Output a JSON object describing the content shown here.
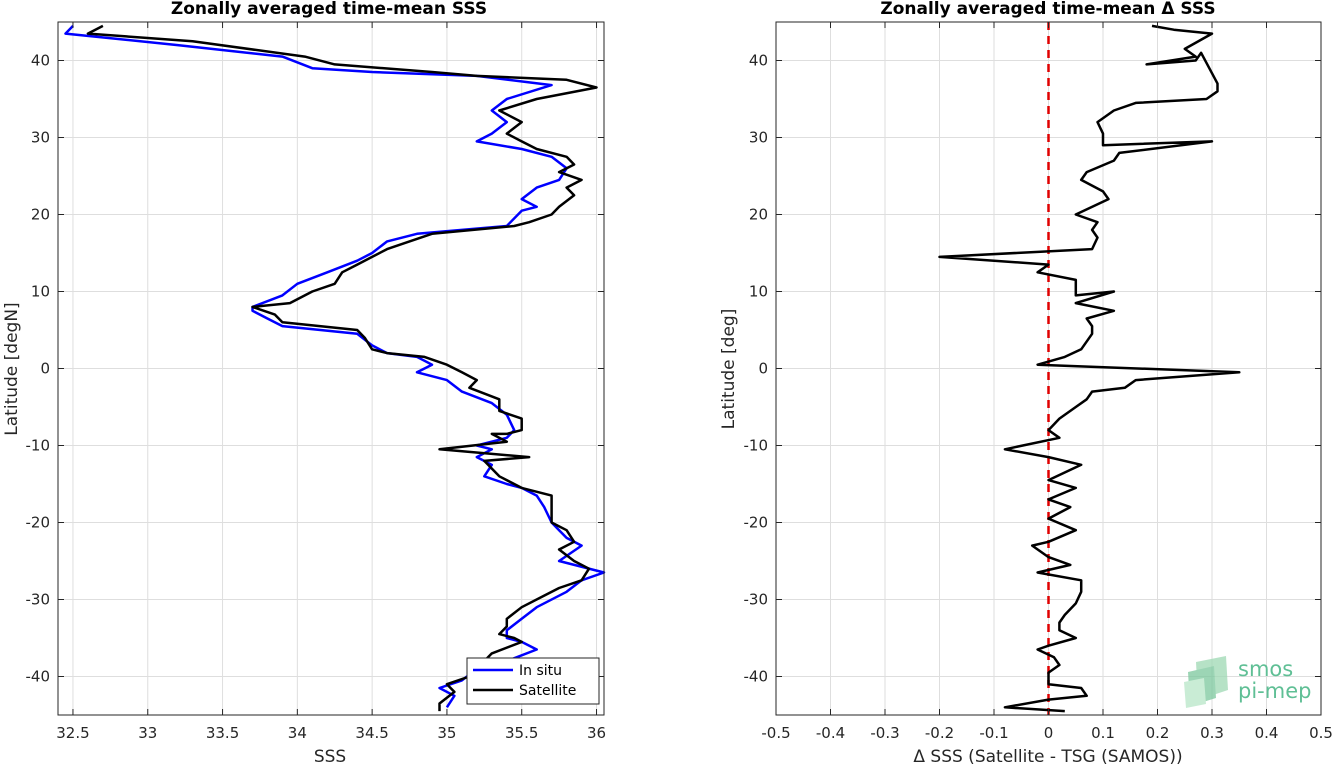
{
  "chart_data": [
    {
      "type": "line",
      "title": "Zonally averaged time-mean SSS",
      "xlabel": "SSS",
      "ylabel": "Latitude [degN]",
      "xlim": [
        32.4,
        36.05
      ],
      "ylim": [
        -45,
        45
      ],
      "xticks": [
        32.5,
        33,
        33.5,
        34,
        34.5,
        35,
        35.5,
        36
      ],
      "xtick_labels": [
        "32.5",
        "33",
        "33.5",
        "34",
        "34.5",
        "35",
        "35.5",
        "36"
      ],
      "yticks": [
        -40,
        -30,
        -20,
        -10,
        0,
        10,
        20,
        30,
        40
      ],
      "ytick_labels": [
        "-40",
        "-30",
        "-20",
        "-10",
        "0",
        "10",
        "20",
        "30",
        "40"
      ],
      "grid": true,
      "legend_position": "bottom-right",
      "series": [
        {
          "name": "In situ",
          "color": "#0000ff",
          "points": [
            [
              32.5,
              44.5
            ],
            [
              32.45,
              43.5
            ],
            [
              33.2,
              42
            ],
            [
              33.9,
              40.5
            ],
            [
              34.1,
              39
            ],
            [
              34.5,
              38.5
            ],
            [
              35.2,
              38
            ],
            [
              35.7,
              36.8
            ],
            [
              35.4,
              35
            ],
            [
              35.3,
              33.5
            ],
            [
              35.4,
              32
            ],
            [
              35.3,
              30.5
            ],
            [
              35.2,
              29.5
            ],
            [
              35.5,
              28.5
            ],
            [
              35.7,
              27.5
            ],
            [
              35.8,
              26
            ],
            [
              35.75,
              24.5
            ],
            [
              35.6,
              23.5
            ],
            [
              35.5,
              22
            ],
            [
              35.6,
              21
            ],
            [
              35.5,
              20.5
            ],
            [
              35.4,
              18.5
            ],
            [
              34.8,
              17.5
            ],
            [
              34.6,
              16.5
            ],
            [
              34.5,
              15
            ],
            [
              34.4,
              14
            ],
            [
              34.2,
              12.5
            ],
            [
              34.0,
              11
            ],
            [
              33.9,
              9.5
            ],
            [
              33.7,
              8
            ],
            [
              33.7,
              7.5
            ],
            [
              33.8,
              6.5
            ],
            [
              33.9,
              5.5
            ],
            [
              34.4,
              4.5
            ],
            [
              34.5,
              3
            ],
            [
              34.6,
              2
            ],
            [
              34.8,
              1.5
            ],
            [
              34.9,
              0.5
            ],
            [
              34.8,
              -0.5
            ],
            [
              35.0,
              -1.5
            ],
            [
              35.1,
              -3
            ],
            [
              35.3,
              -4.5
            ],
            [
              35.4,
              -6
            ],
            [
              35.45,
              -8
            ],
            [
              35.4,
              -9
            ],
            [
              35.2,
              -10
            ],
            [
              35.3,
              -10.5
            ],
            [
              35.2,
              -11.5
            ],
            [
              35.3,
              -12.5
            ],
            [
              35.25,
              -14
            ],
            [
              35.4,
              -15
            ],
            [
              35.5,
              -15.5
            ],
            [
              35.6,
              -16.5
            ],
            [
              35.65,
              -18
            ],
            [
              35.7,
              -20
            ],
            [
              35.75,
              -21
            ],
            [
              35.8,
              -22
            ],
            [
              35.9,
              -23
            ],
            [
              35.75,
              -25
            ],
            [
              36.05,
              -26.5
            ],
            [
              35.9,
              -27.5
            ],
            [
              35.8,
              -29
            ],
            [
              35.6,
              -31
            ],
            [
              35.5,
              -32.5
            ],
            [
              35.4,
              -34
            ],
            [
              35.4,
              -35
            ],
            [
              35.5,
              -35.5
            ],
            [
              35.6,
              -36.5
            ],
            [
              35.4,
              -38
            ],
            [
              35.2,
              -39
            ],
            [
              35.1,
              -40.5
            ],
            [
              34.95,
              -41.5
            ],
            [
              35.05,
              -42.5
            ],
            [
              35.0,
              -44
            ]
          ]
        },
        {
          "name": "Satellite",
          "color": "#000000",
          "points": [
            [
              32.7,
              44.5
            ],
            [
              32.6,
              43.5
            ],
            [
              33.3,
              42.5
            ],
            [
              34.05,
              40.5
            ],
            [
              34.25,
              39.5
            ],
            [
              34.9,
              38.5
            ],
            [
              35.2,
              38
            ],
            [
              35.8,
              37.5
            ],
            [
              36.0,
              36.5
            ],
            [
              35.6,
              35
            ],
            [
              35.35,
              33.5
            ],
            [
              35.5,
              32
            ],
            [
              35.4,
              30.5
            ],
            [
              35.5,
              29.5
            ],
            [
              35.6,
              28.5
            ],
            [
              35.8,
              27.5
            ],
            [
              35.85,
              26.5
            ],
            [
              35.75,
              25.5
            ],
            [
              35.9,
              24.5
            ],
            [
              35.8,
              23.5
            ],
            [
              35.85,
              22.5
            ],
            [
              35.75,
              21
            ],
            [
              35.7,
              20
            ],
            [
              35.55,
              19
            ],
            [
              35.45,
              18.5
            ],
            [
              34.9,
              17.5
            ],
            [
              34.75,
              16.5
            ],
            [
              34.6,
              15.5
            ],
            [
              34.5,
              14.5
            ],
            [
              34.4,
              13.5
            ],
            [
              34.3,
              12.5
            ],
            [
              34.25,
              11
            ],
            [
              34.1,
              10
            ],
            [
              33.95,
              8.5
            ],
            [
              33.7,
              8
            ],
            [
              33.85,
              7
            ],
            [
              33.9,
              6
            ],
            [
              34.4,
              5
            ],
            [
              34.45,
              4
            ],
            [
              34.5,
              2.5
            ],
            [
              34.6,
              2
            ],
            [
              34.85,
              1.5
            ],
            [
              35.0,
              0.5
            ],
            [
              35.1,
              -0.5
            ],
            [
              35.2,
              -1.5
            ],
            [
              35.15,
              -2.5
            ],
            [
              35.35,
              -4
            ],
            [
              35.35,
              -5.5
            ],
            [
              35.5,
              -6.5
            ],
            [
              35.5,
              -8
            ],
            [
              35.4,
              -8.5
            ],
            [
              35.3,
              -8.5
            ],
            [
              35.4,
              -9.5
            ],
            [
              34.95,
              -10.5
            ],
            [
              35.55,
              -11.5
            ],
            [
              35.25,
              -12
            ],
            [
              35.35,
              -14
            ],
            [
              35.5,
              -15.5
            ],
            [
              35.7,
              -16.5
            ],
            [
              35.7,
              -18
            ],
            [
              35.7,
              -20
            ],
            [
              35.8,
              -21
            ],
            [
              35.85,
              -22.5
            ],
            [
              35.75,
              -23.5
            ],
            [
              35.85,
              -25
            ],
            [
              35.95,
              -26
            ],
            [
              35.9,
              -27.5
            ],
            [
              35.75,
              -28.5
            ],
            [
              35.65,
              -29.5
            ],
            [
              35.5,
              -31
            ],
            [
              35.4,
              -32.5
            ],
            [
              35.4,
              -33.5
            ],
            [
              35.35,
              -34.5
            ],
            [
              35.45,
              -35
            ],
            [
              35.5,
              -35.5
            ],
            [
              35.3,
              -37
            ],
            [
              35.2,
              -39
            ],
            [
              35.15,
              -40
            ],
            [
              35.0,
              -41
            ],
            [
              35.05,
              -42
            ],
            [
              34.95,
              -43.5
            ],
            [
              34.95,
              -44.5
            ]
          ]
        }
      ]
    },
    {
      "type": "line",
      "title": "Zonally averaged time-mean Δ SSS",
      "xlabel": "Δ SSS (Satellite - TSG (SAMOS))",
      "ylabel": "Latitude [deg]",
      "xlim": [
        -0.5,
        0.5
      ],
      "ylim": [
        -45,
        45
      ],
      "xticks": [
        -0.5,
        -0.4,
        -0.3,
        -0.2,
        -0.1,
        0,
        0.1,
        0.2,
        0.3,
        0.4,
        0.5
      ],
      "xtick_labels": [
        "-0.5",
        "-0.4",
        "-0.3",
        "-0.2",
        "-0.1",
        "0",
        "0.1",
        "0.2",
        "0.3",
        "0.4",
        "0.5"
      ],
      "yticks": [
        -40,
        -30,
        -20,
        -10,
        0,
        10,
        20,
        30,
        40
      ],
      "ytick_labels": [
        "-40",
        "-30",
        "-20",
        "-10",
        "0",
        "10",
        "20",
        "30",
        "40"
      ],
      "grid": true,
      "reference_line": {
        "x": 0,
        "color": "#e00000",
        "style": "dashed"
      },
      "series": [
        {
          "color": "#000000",
          "points": [
            [
              0.19,
              44.5
            ],
            [
              0.23,
              44
            ],
            [
              0.3,
              43.5
            ],
            [
              0.25,
              41.5
            ],
            [
              0.27,
              40.5
            ],
            [
              0.18,
              39.5
            ],
            [
              0.27,
              40
            ],
            [
              0.28,
              41
            ],
            [
              0.31,
              37
            ],
            [
              0.31,
              36
            ],
            [
              0.29,
              35
            ],
            [
              0.16,
              34.5
            ],
            [
              0.12,
              33.5
            ],
            [
              0.09,
              32
            ],
            [
              0.1,
              30.5
            ],
            [
              0.1,
              29
            ],
            [
              0.3,
              29.5
            ],
            [
              0.13,
              28
            ],
            [
              0.12,
              27
            ],
            [
              0.07,
              25.5
            ],
            [
              0.06,
              24.5
            ],
            [
              0.1,
              23
            ],
            [
              0.11,
              22
            ],
            [
              0.05,
              20
            ],
            [
              0.09,
              19
            ],
            [
              0.08,
              18
            ],
            [
              0.09,
              17
            ],
            [
              0.08,
              15.5
            ],
            [
              -0.2,
              14.5
            ],
            [
              0.0,
              13.5
            ],
            [
              -0.02,
              12.5
            ],
            [
              0.05,
              11.5
            ],
            [
              0.05,
              9.5
            ],
            [
              0.12,
              10
            ],
            [
              0.05,
              8.5
            ],
            [
              0.12,
              7.5
            ],
            [
              0.07,
              6.5
            ],
            [
              0.08,
              5.5
            ],
            [
              0.08,
              4.5
            ],
            [
              0.06,
              2.5
            ],
            [
              0.03,
              1.5
            ],
            [
              -0.02,
              0.5
            ],
            [
              0.35,
              -0.5
            ],
            [
              0.16,
              -1.5
            ],
            [
              0.14,
              -2.5
            ],
            [
              0.08,
              -3
            ],
            [
              0.07,
              -4
            ],
            [
              0.05,
              -5
            ],
            [
              0.02,
              -6.5
            ],
            [
              0.0,
              -8
            ],
            [
              0.02,
              -9
            ],
            [
              -0.08,
              -10.5
            ],
            [
              0.0,
              -11.5
            ],
            [
              0.06,
              -12.5
            ],
            [
              0.0,
              -14.5
            ],
            [
              0.05,
              -15.5
            ],
            [
              0.0,
              -17
            ],
            [
              0.04,
              -18
            ],
            [
              0.0,
              -19.5
            ],
            [
              0.05,
              -21
            ],
            [
              0.0,
              -22.5
            ],
            [
              -0.03,
              -23
            ],
            [
              0.0,
              -24.5
            ],
            [
              0.04,
              -25.5
            ],
            [
              -0.02,
              -26.5
            ],
            [
              0.06,
              -27.5
            ],
            [
              0.06,
              -29
            ],
            [
              0.05,
              -30.5
            ],
            [
              0.03,
              -32
            ],
            [
              0.02,
              -33
            ],
            [
              0.02,
              -34
            ],
            [
              0.05,
              -35
            ],
            [
              0.0,
              -36
            ],
            [
              -0.02,
              -36.5
            ],
            [
              0.01,
              -37.5
            ],
            [
              0.02,
              -38.5
            ],
            [
              0.0,
              -39.5
            ],
            [
              0.0,
              -41
            ],
            [
              0.06,
              -41.5
            ],
            [
              0.07,
              -42.5
            ],
            [
              0.0,
              -43
            ],
            [
              -0.08,
              -44
            ],
            [
              0.03,
              -44.5
            ]
          ]
        }
      ]
    }
  ],
  "logo": {
    "line1": "smos",
    "line2": "pi-mep"
  }
}
